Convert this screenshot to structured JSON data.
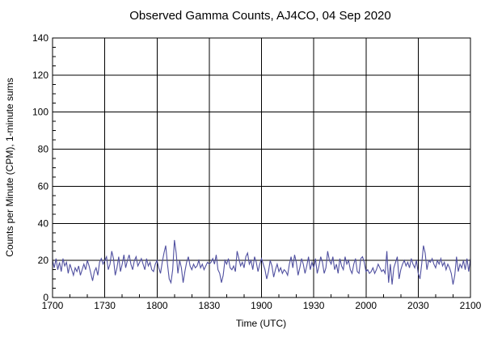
{
  "chart_data": {
    "type": "line",
    "title": "Observed Gamma Counts, AJ4CO, 04 Sep 2020",
    "xlabel": "Time (UTC)",
    "ylabel": "Counts per Minute (CPM), 1-minute sums",
    "x_tick_labels": [
      "1700",
      "1730",
      "1800",
      "1830",
      "1900",
      "1930",
      "2000",
      "2030",
      "2100"
    ],
    "x_range_min": 240,
    "x_major_step_min": 30,
    "x_minor_step_min": 10,
    "ylim": [
      0,
      140
    ],
    "y_major_step": 20,
    "y_minor_step": 5,
    "grid": "on",
    "legend": "none",
    "line_color": "#5050a0",
    "axis_color": "#000000",
    "background_color": "#ffffff",
    "series": [
      {
        "name": "gamma-counts-1-minute-sums",
        "x_start_min": 0,
        "x_step_min": 1,
        "values": [
          20,
          16,
          21,
          15,
          19,
          14,
          21,
          17,
          19,
          13,
          18,
          15,
          12,
          16,
          14,
          17,
          12,
          15,
          18,
          15,
          20,
          17,
          13,
          9,
          14,
          16,
          12,
          19,
          21,
          18,
          20,
          22,
          15,
          18,
          25,
          21,
          12,
          16,
          22,
          14,
          18,
          23,
          16,
          20,
          23,
          18,
          15,
          20,
          22,
          17,
          19,
          21,
          18,
          15,
          21,
          17,
          19,
          15,
          14,
          18,
          20,
          16,
          13,
          19,
          24,
          28,
          18,
          10,
          8,
          15,
          31,
          24,
          13,
          20,
          16,
          8,
          14,
          19,
          22,
          17,
          15,
          18,
          16,
          17,
          20,
          16,
          18,
          15,
          17,
          19,
          18,
          19,
          21,
          18,
          23,
          15,
          13,
          8,
          12,
          20,
          18,
          21,
          16,
          15,
          17,
          14,
          25,
          21,
          17,
          19,
          16,
          22,
          24,
          18,
          20,
          15,
          22,
          19,
          14,
          18,
          21,
          18,
          15,
          10,
          14,
          20,
          17,
          11,
          15,
          18,
          14,
          16,
          13,
          15,
          14,
          12,
          18,
          22,
          16,
          23,
          19,
          12,
          16,
          21,
          18,
          13,
          17,
          22,
          15,
          19,
          16,
          21,
          13,
          17,
          22,
          19,
          13,
          16,
          25,
          20,
          18,
          22,
          15,
          18,
          13,
          21,
          17,
          15,
          22,
          18,
          20,
          15,
          13,
          18,
          21,
          14,
          13,
          21,
          22,
          19,
          14,
          15,
          13,
          14,
          16,
          13,
          15,
          18,
          16,
          14,
          15,
          13,
          25,
          8,
          18,
          7,
          16,
          19,
          22,
          10,
          15,
          18,
          20,
          17,
          19,
          16,
          21,
          18,
          16,
          20,
          13,
          10,
          18,
          28,
          24,
          15,
          20,
          19,
          21,
          18,
          16,
          20,
          18,
          21,
          17,
          19,
          15,
          18,
          16,
          13,
          7,
          12,
          22,
          14,
          18,
          16,
          20,
          15,
          21,
          14,
          21
        ]
      }
    ]
  }
}
